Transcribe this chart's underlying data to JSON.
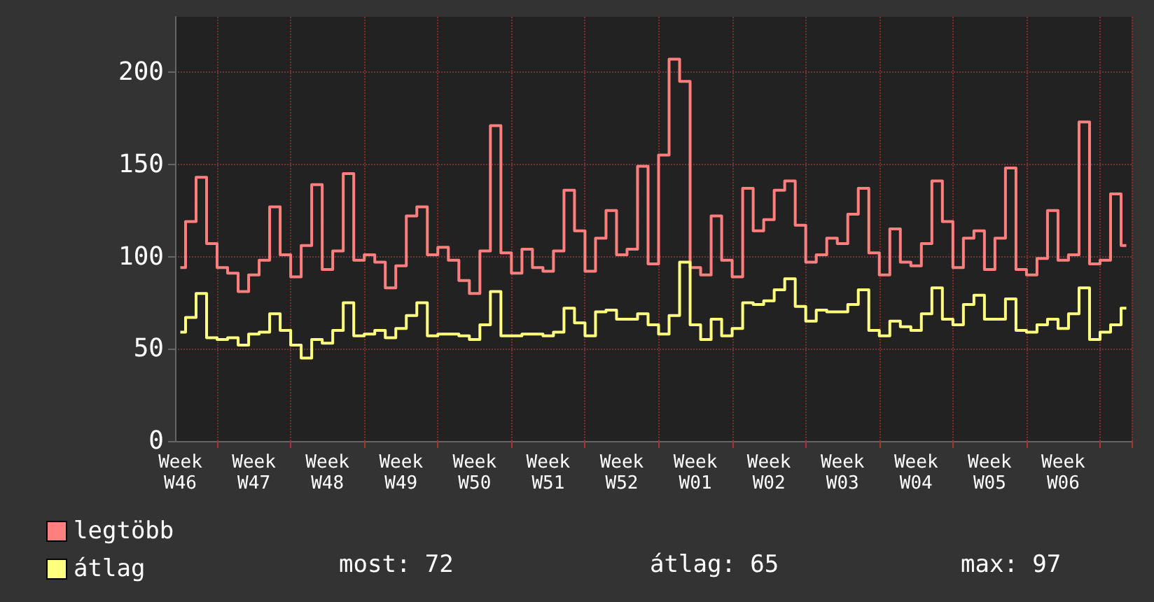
{
  "chart_data": {
    "type": "step",
    "categories": [
      "Week W46",
      null,
      null,
      null,
      null,
      null,
      null,
      "Week W47",
      null,
      null,
      null,
      null,
      null,
      null,
      "Week W48",
      null,
      null,
      null,
      null,
      null,
      null,
      "Week W49",
      null,
      null,
      null,
      null,
      null,
      null,
      "Week W50",
      null,
      null,
      null,
      null,
      null,
      null,
      "Week W51",
      null,
      null,
      null,
      null,
      null,
      null,
      "Week W52",
      null,
      null,
      null,
      null,
      null,
      null,
      "Week W01",
      null,
      null,
      null,
      null,
      null,
      null,
      "Week W02",
      null,
      null,
      null,
      null,
      null,
      null,
      "Week W03",
      null,
      null,
      null,
      null,
      null,
      null,
      "Week W04",
      null,
      null,
      null,
      null,
      null,
      null,
      "Week W05",
      null,
      null,
      null,
      null,
      null,
      null,
      "Week W06",
      null,
      null,
      null,
      null,
      null,
      null
    ],
    "series": [
      {
        "name": "legtöbb",
        "color": "#ff7f7f",
        "values": [
          94,
          119,
          143,
          107,
          94,
          91,
          81,
          90,
          98,
          127,
          101,
          89,
          106,
          139,
          93,
          103,
          145,
          98,
          101,
          97,
          83,
          95,
          122,
          127,
          101,
          105,
          98,
          87,
          80,
          103,
          171,
          102,
          91,
          104,
          94,
          92,
          103,
          136,
          114,
          92,
          110,
          125,
          101,
          104,
          149,
          96,
          155,
          207,
          195,
          94,
          90,
          122,
          98,
          89,
          137,
          114,
          120,
          136,
          141,
          117,
          97,
          101,
          110,
          107,
          123,
          137,
          102,
          90,
          115,
          97,
          95,
          107,
          141,
          119,
          94,
          110,
          114,
          93,
          110,
          148,
          93,
          90,
          99,
          125,
          98,
          101,
          173,
          96,
          98,
          134,
          106
        ]
      },
      {
        "name": "átlag",
        "color": "#ffff7f",
        "values": [
          59,
          67,
          80,
          56,
          55,
          56,
          52,
          58,
          59,
          69,
          60,
          52,
          45,
          55,
          53,
          60,
          75,
          57,
          58,
          60,
          56,
          61,
          68,
          75,
          57,
          58,
          58,
          57,
          55,
          63,
          81,
          57,
          57,
          58,
          58,
          57,
          59,
          72,
          64,
          57,
          70,
          71,
          66,
          66,
          69,
          63,
          58,
          68,
          97,
          63,
          55,
          66,
          57,
          61,
          75,
          74,
          76,
          82,
          88,
          73,
          65,
          71,
          70,
          70,
          74,
          82,
          60,
          57,
          65,
          62,
          60,
          69,
          83,
          66,
          63,
          74,
          79,
          66,
          66,
          77,
          60,
          59,
          63,
          66,
          61,
          69,
          83,
          55,
          59,
          63,
          72
        ]
      }
    ],
    "ylim": [
      0,
      230
    ],
    "yticks": [
      0,
      50,
      100,
      150,
      200
    ],
    "grid": true,
    "marker": "none",
    "legend": "bottom left",
    "annotations": [
      "most: 72",
      "átlag: 65",
      "max: 97"
    ]
  }
}
